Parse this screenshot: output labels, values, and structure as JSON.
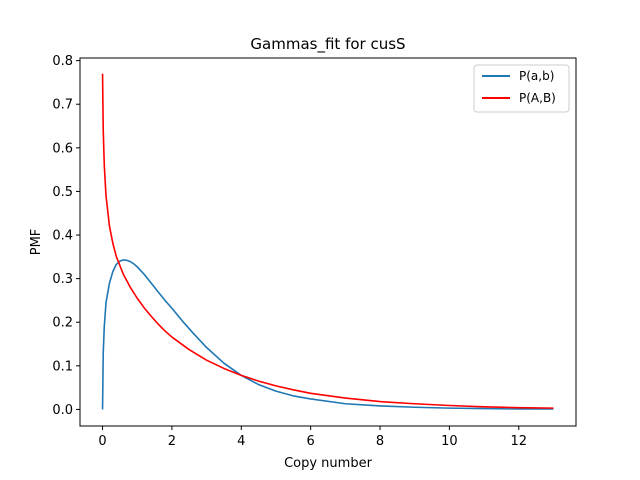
{
  "chart_data": {
    "type": "line",
    "title": "Gammas_fit for cusS",
    "xlabel": "Copy number",
    "ylabel": "PMF",
    "xlim": [
      -0.65,
      13.65
    ],
    "ylim": [
      -0.038,
      0.806
    ],
    "xticks": [
      0,
      2,
      4,
      6,
      8,
      10,
      12
    ],
    "yticks": [
      0.0,
      0.1,
      0.2,
      0.3,
      0.4,
      0.5,
      0.6,
      0.7,
      0.8
    ],
    "xtick_labels": [
      "0",
      "2",
      "4",
      "6",
      "8",
      "10",
      "12"
    ],
    "ytick_labels": [
      "0.0",
      "0.1",
      "0.2",
      "0.3",
      "0.4",
      "0.5",
      "0.6",
      "0.7",
      "0.8"
    ],
    "grid": false,
    "legend_position": "top-right",
    "series": [
      {
        "name": "P(a,b)",
        "color": "#1f77b4",
        "x": [
          0,
          0.02,
          0.05,
          0.1,
          0.2,
          0.3,
          0.4,
          0.5,
          0.6,
          0.7,
          0.8,
          0.9,
          1.0,
          1.2,
          1.4,
          1.6,
          1.8,
          2.0,
          2.3,
          2.6,
          3.0,
          3.5,
          4.0,
          4.5,
          5.0,
          5.5,
          6.0,
          7.0,
          8.0,
          9.0,
          10.0,
          11.0,
          12.0,
          13.0
        ],
        "y": [
          0.0,
          0.13,
          0.19,
          0.245,
          0.29,
          0.317,
          0.333,
          0.34,
          0.343,
          0.342,
          0.339,
          0.334,
          0.327,
          0.31,
          0.29,
          0.27,
          0.25,
          0.232,
          0.203,
          0.176,
          0.142,
          0.106,
          0.078,
          0.057,
          0.042,
          0.031,
          0.024,
          0.013,
          0.008,
          0.005,
          0.003,
          0.002,
          0.001,
          0.001
        ]
      },
      {
        "name": "P(A,B)",
        "color": "#ff0000",
        "x": [
          0,
          0.02,
          0.05,
          0.1,
          0.2,
          0.3,
          0.4,
          0.5,
          0.6,
          0.7,
          0.8,
          1.0,
          1.2,
          1.4,
          1.6,
          1.8,
          2.0,
          2.5,
          3.0,
          3.5,
          4.0,
          4.5,
          5.0,
          5.5,
          6.0,
          7.0,
          8.0,
          9.0,
          10.0,
          11.0,
          12.0,
          13.0
        ],
        "y": [
          0.77,
          0.64,
          0.56,
          0.49,
          0.42,
          0.38,
          0.35,
          0.33,
          0.31,
          0.295,
          0.28,
          0.255,
          0.233,
          0.214,
          0.196,
          0.18,
          0.166,
          0.137,
          0.113,
          0.094,
          0.078,
          0.065,
          0.054,
          0.045,
          0.037,
          0.026,
          0.018,
          0.013,
          0.009,
          0.006,
          0.004,
          0.003
        ]
      }
    ]
  }
}
